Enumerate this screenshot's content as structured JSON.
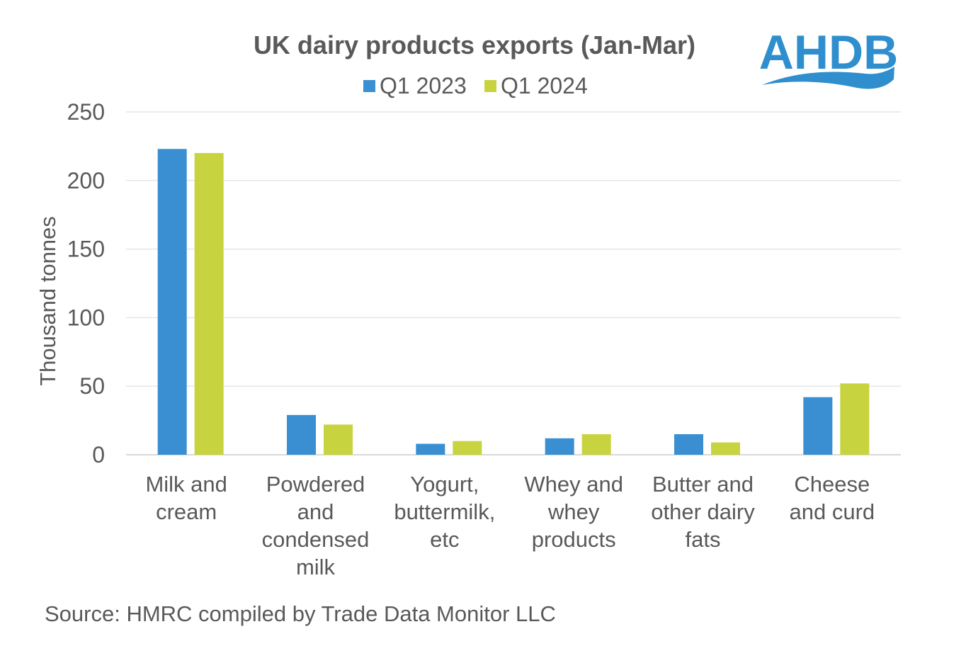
{
  "chart_data": {
    "type": "bar",
    "title": "UK dairy products exports (Jan-Mar)",
    "ylabel": "Thousand tonnes",
    "xlabel": "",
    "ylim": [
      0,
      250
    ],
    "yticks": [
      0,
      50,
      100,
      150,
      200,
      250
    ],
    "grid": true,
    "legend_position": "top-center",
    "categories": [
      [
        "Milk and",
        "cream"
      ],
      [
        "Powdered",
        "and",
        "condensed",
        "milk"
      ],
      [
        "Yogurt,",
        "buttermilk,",
        "etc"
      ],
      [
        "Whey and",
        "whey",
        "products"
      ],
      [
        "Butter and",
        "other dairy",
        "fats"
      ],
      [
        "Cheese",
        "and curd"
      ]
    ],
    "series": [
      {
        "name": "Q1 2023",
        "color": "#3a8fd2",
        "values": [
          223,
          29,
          8,
          12,
          15,
          42
        ]
      },
      {
        "name": "Q1 2024",
        "color": "#c8d340",
        "values": [
          220,
          22,
          10,
          15,
          9,
          52
        ]
      }
    ]
  },
  "source": "Source: HMRC compiled by Trade Data Monitor LLC",
  "logo": {
    "text": "AHDB",
    "color": "#2f8fce"
  }
}
